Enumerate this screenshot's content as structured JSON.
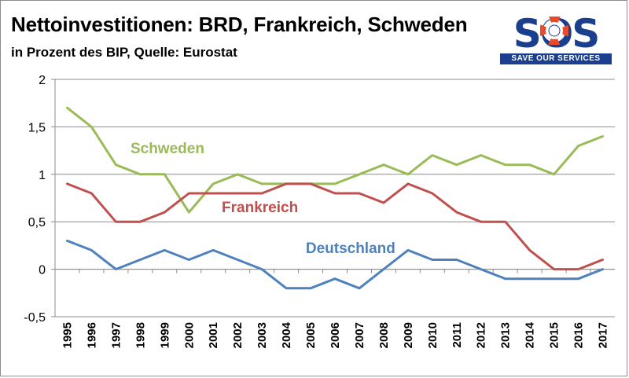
{
  "title": "Nettoinvestitionen: BRD, Frankreich, Schweden",
  "subtitle": "in Prozent des BIP, Quelle: Eurostat",
  "logo": {
    "text": "SOS",
    "tagline": "SAVE OUR SERVICES"
  },
  "colors": {
    "Schweden": "#9bbb59",
    "Frankreich": "#c0504d",
    "Deutschland": "#4f81bd",
    "logo": "#1a3f8f"
  },
  "chart_data": {
    "type": "line",
    "categories": [
      "1995",
      "1996",
      "1997",
      "1998",
      "1999",
      "2000",
      "2001",
      "2002",
      "2003",
      "2004",
      "2005",
      "2006",
      "2007",
      "2008",
      "2009",
      "2010",
      "2011",
      "2012",
      "2013",
      "2014",
      "2015",
      "2016",
      "2017"
    ],
    "ylim": [
      -0.5,
      2
    ],
    "yticks": [
      "2",
      "1,5",
      "1",
      "0,5",
      "0",
      "-0,5"
    ],
    "ytick_values": [
      2,
      1.5,
      1,
      0.5,
      0,
      -0.5
    ],
    "grid": "horizontal",
    "legend": "inline labels",
    "series": [
      {
        "name": "Schweden",
        "values": [
          1.7,
          1.5,
          1.1,
          1.0,
          1.0,
          0.6,
          0.9,
          1.0,
          0.9,
          0.9,
          0.9,
          0.9,
          1.0,
          1.1,
          1.0,
          1.2,
          1.1,
          1.2,
          1.1,
          1.1,
          1.0,
          1.3,
          1.4
        ]
      },
      {
        "name": "Frankreich",
        "values": [
          0.9,
          0.8,
          0.5,
          0.5,
          0.6,
          0.8,
          0.8,
          0.8,
          0.8,
          0.9,
          0.9,
          0.8,
          0.8,
          0.7,
          0.9,
          0.8,
          0.6,
          0.5,
          0.5,
          0.2,
          0.0,
          0.0,
          0.1
        ]
      },
      {
        "name": "Deutschland",
        "values": [
          0.3,
          0.2,
          0.0,
          0.1,
          0.2,
          0.1,
          0.2,
          0.1,
          0.0,
          -0.2,
          -0.2,
          -0.1,
          -0.2,
          0.0,
          0.2,
          0.1,
          0.1,
          0.0,
          -0.1,
          -0.1,
          -0.1,
          -0.1,
          0.0
        ]
      }
    ]
  }
}
